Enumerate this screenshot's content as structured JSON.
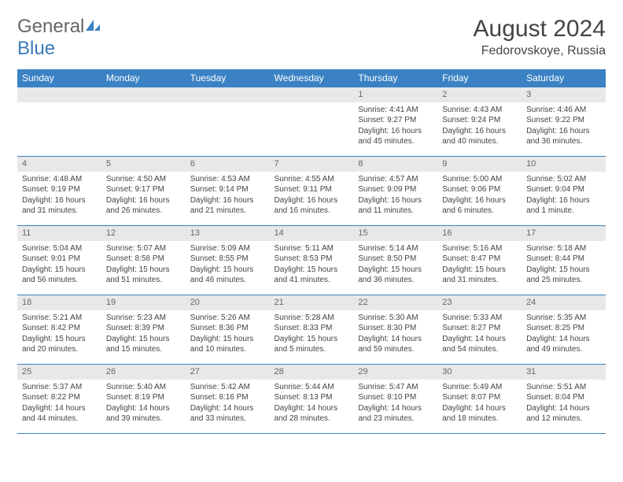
{
  "logo": {
    "text1": "General",
    "text2": "Blue",
    "icon_color": "#3b82c4"
  },
  "title": "August 2024",
  "location": "Fedorovskoye, Russia",
  "colors": {
    "header_bg": "#3b82c4",
    "header_fg": "#ffffff",
    "daynum_bg": "#e8e8e8",
    "border": "#3b82c4",
    "text": "#444444"
  },
  "day_headers": [
    "Sunday",
    "Monday",
    "Tuesday",
    "Wednesday",
    "Thursday",
    "Friday",
    "Saturday"
  ],
  "weeks": [
    [
      null,
      null,
      null,
      null,
      {
        "num": "1",
        "sunrise": "4:41 AM",
        "sunset": "9:27 PM",
        "daylight": "16 hours and 45 minutes."
      },
      {
        "num": "2",
        "sunrise": "4:43 AM",
        "sunset": "9:24 PM",
        "daylight": "16 hours and 40 minutes."
      },
      {
        "num": "3",
        "sunrise": "4:46 AM",
        "sunset": "9:22 PM",
        "daylight": "16 hours and 36 minutes."
      }
    ],
    [
      {
        "num": "4",
        "sunrise": "4:48 AM",
        "sunset": "9:19 PM",
        "daylight": "16 hours and 31 minutes."
      },
      {
        "num": "5",
        "sunrise": "4:50 AM",
        "sunset": "9:17 PM",
        "daylight": "16 hours and 26 minutes."
      },
      {
        "num": "6",
        "sunrise": "4:53 AM",
        "sunset": "9:14 PM",
        "daylight": "16 hours and 21 minutes."
      },
      {
        "num": "7",
        "sunrise": "4:55 AM",
        "sunset": "9:11 PM",
        "daylight": "16 hours and 16 minutes."
      },
      {
        "num": "8",
        "sunrise": "4:57 AM",
        "sunset": "9:09 PM",
        "daylight": "16 hours and 11 minutes."
      },
      {
        "num": "9",
        "sunrise": "5:00 AM",
        "sunset": "9:06 PM",
        "daylight": "16 hours and 6 minutes."
      },
      {
        "num": "10",
        "sunrise": "5:02 AM",
        "sunset": "9:04 PM",
        "daylight": "16 hours and 1 minute."
      }
    ],
    [
      {
        "num": "11",
        "sunrise": "5:04 AM",
        "sunset": "9:01 PM",
        "daylight": "15 hours and 56 minutes."
      },
      {
        "num": "12",
        "sunrise": "5:07 AM",
        "sunset": "8:58 PM",
        "daylight": "15 hours and 51 minutes."
      },
      {
        "num": "13",
        "sunrise": "5:09 AM",
        "sunset": "8:55 PM",
        "daylight": "15 hours and 46 minutes."
      },
      {
        "num": "14",
        "sunrise": "5:11 AM",
        "sunset": "8:53 PM",
        "daylight": "15 hours and 41 minutes."
      },
      {
        "num": "15",
        "sunrise": "5:14 AM",
        "sunset": "8:50 PM",
        "daylight": "15 hours and 36 minutes."
      },
      {
        "num": "16",
        "sunrise": "5:16 AM",
        "sunset": "8:47 PM",
        "daylight": "15 hours and 31 minutes."
      },
      {
        "num": "17",
        "sunrise": "5:18 AM",
        "sunset": "8:44 PM",
        "daylight": "15 hours and 25 minutes."
      }
    ],
    [
      {
        "num": "18",
        "sunrise": "5:21 AM",
        "sunset": "8:42 PM",
        "daylight": "15 hours and 20 minutes."
      },
      {
        "num": "19",
        "sunrise": "5:23 AM",
        "sunset": "8:39 PM",
        "daylight": "15 hours and 15 minutes."
      },
      {
        "num": "20",
        "sunrise": "5:26 AM",
        "sunset": "8:36 PM",
        "daylight": "15 hours and 10 minutes."
      },
      {
        "num": "21",
        "sunrise": "5:28 AM",
        "sunset": "8:33 PM",
        "daylight": "15 hours and 5 minutes."
      },
      {
        "num": "22",
        "sunrise": "5:30 AM",
        "sunset": "8:30 PM",
        "daylight": "14 hours and 59 minutes."
      },
      {
        "num": "23",
        "sunrise": "5:33 AM",
        "sunset": "8:27 PM",
        "daylight": "14 hours and 54 minutes."
      },
      {
        "num": "24",
        "sunrise": "5:35 AM",
        "sunset": "8:25 PM",
        "daylight": "14 hours and 49 minutes."
      }
    ],
    [
      {
        "num": "25",
        "sunrise": "5:37 AM",
        "sunset": "8:22 PM",
        "daylight": "14 hours and 44 minutes."
      },
      {
        "num": "26",
        "sunrise": "5:40 AM",
        "sunset": "8:19 PM",
        "daylight": "14 hours and 39 minutes."
      },
      {
        "num": "27",
        "sunrise": "5:42 AM",
        "sunset": "8:16 PM",
        "daylight": "14 hours and 33 minutes."
      },
      {
        "num": "28",
        "sunrise": "5:44 AM",
        "sunset": "8:13 PM",
        "daylight": "14 hours and 28 minutes."
      },
      {
        "num": "29",
        "sunrise": "5:47 AM",
        "sunset": "8:10 PM",
        "daylight": "14 hours and 23 minutes."
      },
      {
        "num": "30",
        "sunrise": "5:49 AM",
        "sunset": "8:07 PM",
        "daylight": "14 hours and 18 minutes."
      },
      {
        "num": "31",
        "sunrise": "5:51 AM",
        "sunset": "8:04 PM",
        "daylight": "14 hours and 12 minutes."
      }
    ]
  ],
  "labels": {
    "sunrise": "Sunrise:",
    "sunset": "Sunset:",
    "daylight": "Daylight:"
  }
}
